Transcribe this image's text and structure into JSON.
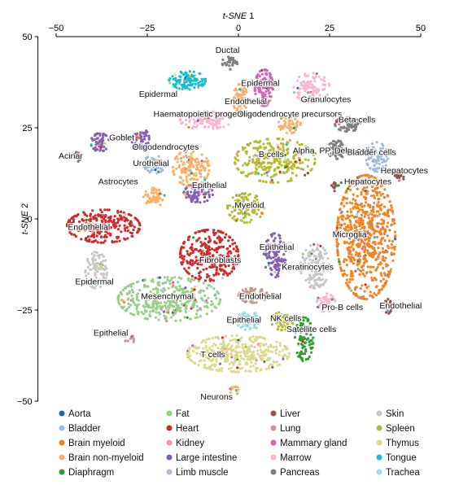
{
  "chart_data": {
    "type": "scatter",
    "title": "",
    "xlabel": "t-SNE 1",
    "ylabel": "t-SNE 2",
    "xlim": [
      -55,
      50
    ],
    "ylim": [
      -50,
      50
    ],
    "x_ticks": [
      -50,
      -25,
      0,
      25,
      50
    ],
    "y_ticks": [
      -50,
      -25,
      0,
      25,
      50
    ],
    "x_axis_position": "top",
    "legend_position": "bottom",
    "grid": false,
    "tissues": [
      {
        "name": "Aorta",
        "color": "#2166ac"
      },
      {
        "name": "Bladder",
        "color": "#9ebbe0"
      },
      {
        "name": "Brain myeloid",
        "color": "#f58220"
      },
      {
        "name": "Brain non-myeloid",
        "color": "#fbb06a"
      },
      {
        "name": "Diaphragm",
        "color": "#2ca02c"
      },
      {
        "name": "Fat",
        "color": "#98d08a"
      },
      {
        "name": "Heart",
        "color": "#d62728"
      },
      {
        "name": "Kidney",
        "color": "#f29a9a"
      },
      {
        "name": "Large intestine",
        "color": "#8560b4"
      },
      {
        "name": "Limb muscle",
        "color": "#c5b0d5"
      },
      {
        "name": "Liver",
        "color": "#8c564b"
      },
      {
        "name": "Lung",
        "color": "#c49c94"
      },
      {
        "name": "Mammary gland",
        "color": "#d066b8"
      },
      {
        "name": "Marrow",
        "color": "#f7b6d2"
      },
      {
        "name": "Pancreas",
        "color": "#7f7f7f"
      },
      {
        "name": "Skin",
        "color": "#c7c7c7"
      },
      {
        "name": "Spleen",
        "color": "#b5bd2e"
      },
      {
        "name": "Thymus",
        "color": "#dbdb8d"
      },
      {
        "name": "Tongue",
        "color": "#17becf"
      },
      {
        "name": "Trachea",
        "color": "#9edae5"
      }
    ],
    "clusters": [
      {
        "label": "Ductal",
        "tissue": "Pancreas",
        "x": -2,
        "y": 43,
        "rx": 2.5,
        "ry": 2,
        "n": 30,
        "lx": -3,
        "ly": 45.5
      },
      {
        "label": "Epidermal",
        "tissue": "Tongue",
        "x": -14,
        "y": 38,
        "rx": 5,
        "ry": 2.5,
        "n": 110,
        "lx": -22,
        "ly": 33.5
      },
      {
        "label": "Epidermal",
        "tissue": "Mammary gland",
        "x": 7,
        "y": 36,
        "rx": 2.5,
        "ry": 5,
        "n": 120,
        "lx": 6,
        "ly": 36.5
      },
      {
        "label": "Endothelial",
        "tissue": "Brain non-myeloid",
        "x": 0.5,
        "y": 33,
        "rx": 2,
        "ry": 4,
        "n": 70,
        "lx": 2,
        "ly": 31.5
      },
      {
        "label": "Granulocytes",
        "tissue": "Marrow",
        "x": 20,
        "y": 36,
        "rx": 5,
        "ry": 4,
        "n": 110,
        "lx": 24,
        "ly": 32
      },
      {
        "label": "Haematopoietic progenitors",
        "tissue": "Marrow",
        "x": -9,
        "y": 27,
        "rx": 7,
        "ry": 2.5,
        "n": 100,
        "lx": -9,
        "ly": 28
      },
      {
        "label": "Oligodendrocyte precursors",
        "tissue": "Brain non-myeloid",
        "x": 14,
        "y": 26,
        "rx": 3,
        "ry": 2.5,
        "n": 60,
        "lx": 14,
        "ly": 28
      },
      {
        "label": "Beta cells",
        "tissue": "Pancreas",
        "x": 30,
        "y": 26,
        "rx": 3.5,
        "ry": 2,
        "n": 70,
        "lx": 32.5,
        "ly": 26.5
      },
      {
        "label": "Goblet",
        "tissue": "Large intestine",
        "x": -38,
        "y": 21,
        "rx": 2.5,
        "ry": 2.5,
        "n": 60,
        "lx": -32,
        "ly": 21.5
      },
      {
        "label": "Goblet",
        "tissue": "Large intestine",
        "x": -27,
        "y": 22,
        "rx": 2.5,
        "ry": 3,
        "n": 50,
        "lx": -32,
        "ly": 21.5
      },
      {
        "label": "Oligodendrocytes",
        "tissue": "Brain non-myeloid",
        "x": -13,
        "y": 14,
        "rx": 5,
        "ry": 5,
        "n": 140,
        "lx": -20,
        "ly": 19
      },
      {
        "label": "Alpha, PP, Delta cells",
        "tissue": "Pancreas",
        "x": 27,
        "y": 19,
        "rx": 2.5,
        "ry": 2.5,
        "n": 60,
        "lx": 26,
        "ly": 18
      },
      {
        "label": "Bladder cells",
        "tissue": "Bladder",
        "x": 38,
        "y": 17,
        "rx": 3,
        "ry": 4,
        "n": 80,
        "lx": 36.5,
        "ly": 17.5
      },
      {
        "label": "B cells",
        "tissue": "Spleen",
        "x": 10,
        "y": 16,
        "rx": 11,
        "ry": 6,
        "n": 280,
        "lx": 9,
        "ly": 17
      },
      {
        "label": "Acinar",
        "tissue": "Pancreas",
        "x": -44,
        "y": 17,
        "rx": 1,
        "ry": 1.5,
        "n": 15,
        "lx": -46,
        "ly": 16.5
      },
      {
        "label": "Urothelial",
        "tissue": "Bladder",
        "x": -23,
        "y": 15,
        "rx": 3,
        "ry": 2.5,
        "n": 60,
        "lx": -24,
        "ly": 14.5
      },
      {
        "label": "Hepatocytes",
        "tissue": "Liver",
        "x": 44,
        "y": 12,
        "rx": 1.5,
        "ry": 2,
        "n": 25,
        "lx": 45.5,
        "ly": 12.5
      },
      {
        "label": "Hepatocytes",
        "tissue": "Liver",
        "x": 27,
        "y": 9,
        "rx": 1.5,
        "ry": 1.5,
        "n": 15,
        "lx": 35.5,
        "ly": 9.5
      },
      {
        "label": "Astrocytes",
        "tissue": "Brain non-myeloid",
        "x": -23,
        "y": 6,
        "rx": 3,
        "ry": 2.5,
        "n": 70,
        "lx": -33,
        "ly": 9.5
      },
      {
        "label": "Epithelial",
        "tissue": "Large intestine",
        "x": -11,
        "y": 7,
        "rx": 4,
        "ry": 2.5,
        "n": 80,
        "lx": -8,
        "ly": 8.5
      },
      {
        "label": "Myeloid",
        "tissue": "Spleen",
        "x": 2,
        "y": 3,
        "rx": 5,
        "ry": 4,
        "n": 110,
        "lx": 3,
        "ly": 3
      },
      {
        "label": "Endothelial",
        "tissue": "Heart",
        "x": -37,
        "y": -2,
        "rx": 10,
        "ry": 4.5,
        "n": 260,
        "lx": -41,
        "ly": -3
      },
      {
        "label": "Microglia",
        "tissue": "Brain myeloid",
        "x": 35,
        "y": -5,
        "rx": 8,
        "ry": 17,
        "n": 700,
        "lx": 30.5,
        "ly": -5
      },
      {
        "label": "Fibroblasts",
        "tissue": "Heart",
        "x": -8,
        "y": -10,
        "rx": 8,
        "ry": 7,
        "n": 280,
        "lx": -5,
        "ly": -12
      },
      {
        "label": "Epithelial",
        "tissue": "Large intestine",
        "x": 10,
        "y": -10,
        "rx": 3,
        "ry": 6,
        "n": 120,
        "lx": 10.5,
        "ly": -8.5
      },
      {
        "label": "Keratinocytes",
        "tissue": "Skin",
        "x": 21,
        "y": -13,
        "rx": 4,
        "ry": 6,
        "n": 140,
        "lx": 19,
        "ly": -14
      },
      {
        "label": "Epidermal",
        "tissue": "Skin",
        "x": -39,
        "y": -14,
        "rx": 3,
        "ry": 5,
        "n": 90,
        "lx": -39.5,
        "ly": -18
      },
      {
        "label": "Mesenchymal",
        "tissue": "Fat",
        "x": -19,
        "y": -22,
        "rx": 14,
        "ry": 6,
        "n": 400,
        "lx": -19.5,
        "ly": -22
      },
      {
        "label": "Endothelial",
        "tissue": "Lung",
        "x": 4,
        "y": -21,
        "rx": 4,
        "ry": 2,
        "n": 70,
        "lx": 6,
        "ly": -22
      },
      {
        "label": "NK cells",
        "tissue": "Spleen",
        "x": 12,
        "y": -28,
        "rx": 3,
        "ry": 2.5,
        "n": 60,
        "lx": 13,
        "ly": -28
      },
      {
        "label": "Pro-B cells",
        "tissue": "Marrow",
        "x": 24,
        "y": -23,
        "rx": 2.5,
        "ry": 2.5,
        "n": 50,
        "lx": 28.5,
        "ly": -25
      },
      {
        "label": "Endothelial",
        "tissue": "Liver",
        "x": 41,
        "y": -24,
        "rx": 1,
        "ry": 2,
        "n": 20,
        "lx": 44.5,
        "ly": -24.5
      },
      {
        "label": "Satellite cells",
        "tissue": "Diaphragm",
        "x": 18,
        "y": -33,
        "rx": 2.5,
        "ry": 6,
        "n": 90,
        "lx": 20,
        "ly": -31
      },
      {
        "label": "Epithelial",
        "tissue": "Trachea",
        "x": 3,
        "y": -28,
        "rx": 3.5,
        "ry": 2.5,
        "n": 60,
        "lx": 1.5,
        "ly": -28.5
      },
      {
        "label": "Epithelial",
        "tissue": "Lung",
        "x": -30,
        "y": -33,
        "rx": 2,
        "ry": 1,
        "n": 12,
        "lx": -35,
        "ly": -32
      },
      {
        "label": "T cells",
        "tissue": "Thymus",
        "x": 0,
        "y": -37,
        "rx": 14,
        "ry": 5,
        "n": 360,
        "lx": -7,
        "ly": -38
      },
      {
        "label": "Neurons",
        "tissue": "Brain non-myeloid",
        "x": -1,
        "y": -47,
        "rx": 1.5,
        "ry": 1,
        "n": 12,
        "lx": -6,
        "ly": -49.5
      }
    ]
  }
}
